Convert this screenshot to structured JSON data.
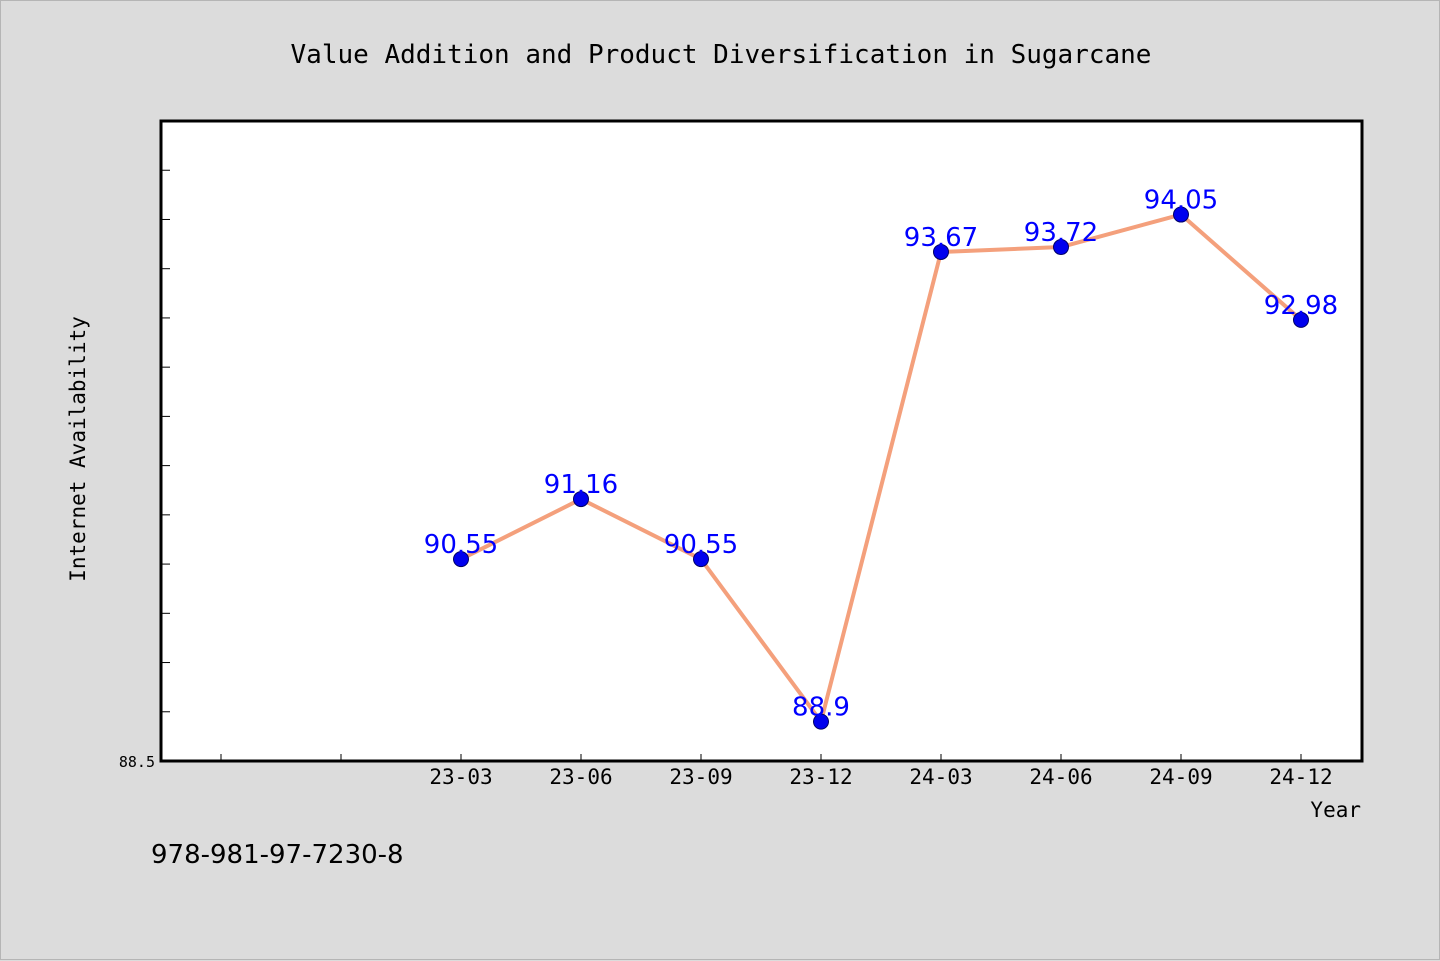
{
  "chart_data": {
    "type": "line",
    "title": "Value Addition and Product Diversification in Sugarcane",
    "xlabel": "Year",
    "ylabel": "Internet Availability",
    "categories": [
      "23-03",
      "23-06",
      "23-09",
      "23-12",
      "24-03",
      "24-06",
      "24-09",
      "24-12"
    ],
    "series": [
      {
        "values": [
          90.55,
          91.16,
          90.55,
          88.9,
          93.67,
          93.72,
          94.05,
          92.98
        ],
        "data_labels": [
          "90.55",
          "91.16",
          "90.55",
          "88.9",
          "93.67",
          "93.72",
          "94.05",
          "92.98"
        ]
      }
    ],
    "ylim": [
      88.5,
      95.0
    ],
    "y_tick_label": "88.5",
    "grid": false,
    "legend": "none",
    "colors": {
      "line": "#f4a07c",
      "marker": "#0000ee",
      "data_label": "#0000ff",
      "plot_background": "#ffffff",
      "figure_background": "#dcdcdc"
    }
  },
  "footer": {
    "isbn": "978-981-97-7230-8"
  }
}
